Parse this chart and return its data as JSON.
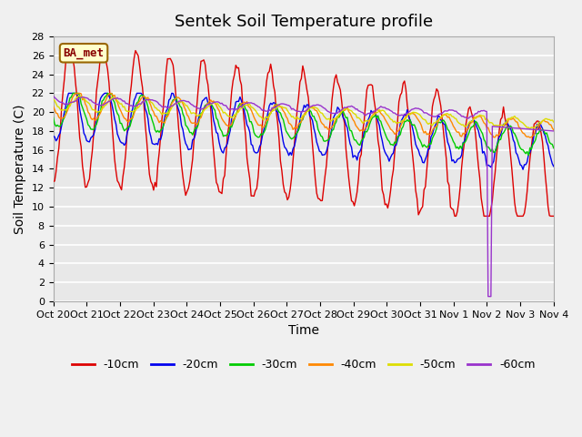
{
  "title": "Sentek Soil Temperature profile",
  "xlabel": "Time",
  "ylabel": "Soil Temperature (C)",
  "annotation": "BA_met",
  "ylim": [
    0,
    28
  ],
  "yticks": [
    0,
    2,
    4,
    6,
    8,
    10,
    12,
    14,
    16,
    18,
    20,
    22,
    24,
    26,
    28
  ],
  "xtick_labels": [
    "Oct 20",
    "Oct 21",
    "Oct 22",
    "Oct 23",
    "Oct 24",
    "Oct 25",
    "Oct 26",
    "Oct 27",
    "Oct 28",
    "Oct 29",
    "Oct 30",
    "Oct 31",
    "Nov 1",
    "Nov 2",
    "Nov 3",
    "Nov 4"
  ],
  "series_colors": [
    "#dd0000",
    "#0000ee",
    "#00cc00",
    "#ff8800",
    "#dddd00",
    "#9933cc"
  ],
  "series_labels": [
    "-10cm",
    "-20cm",
    "-30cm",
    "-40cm",
    "-50cm",
    "-60cm"
  ],
  "background_color": "#e8e8e8",
  "plot_background": "#e8e8e8",
  "title_fontsize": 13,
  "axis_label_fontsize": 10,
  "tick_fontsize": 8
}
